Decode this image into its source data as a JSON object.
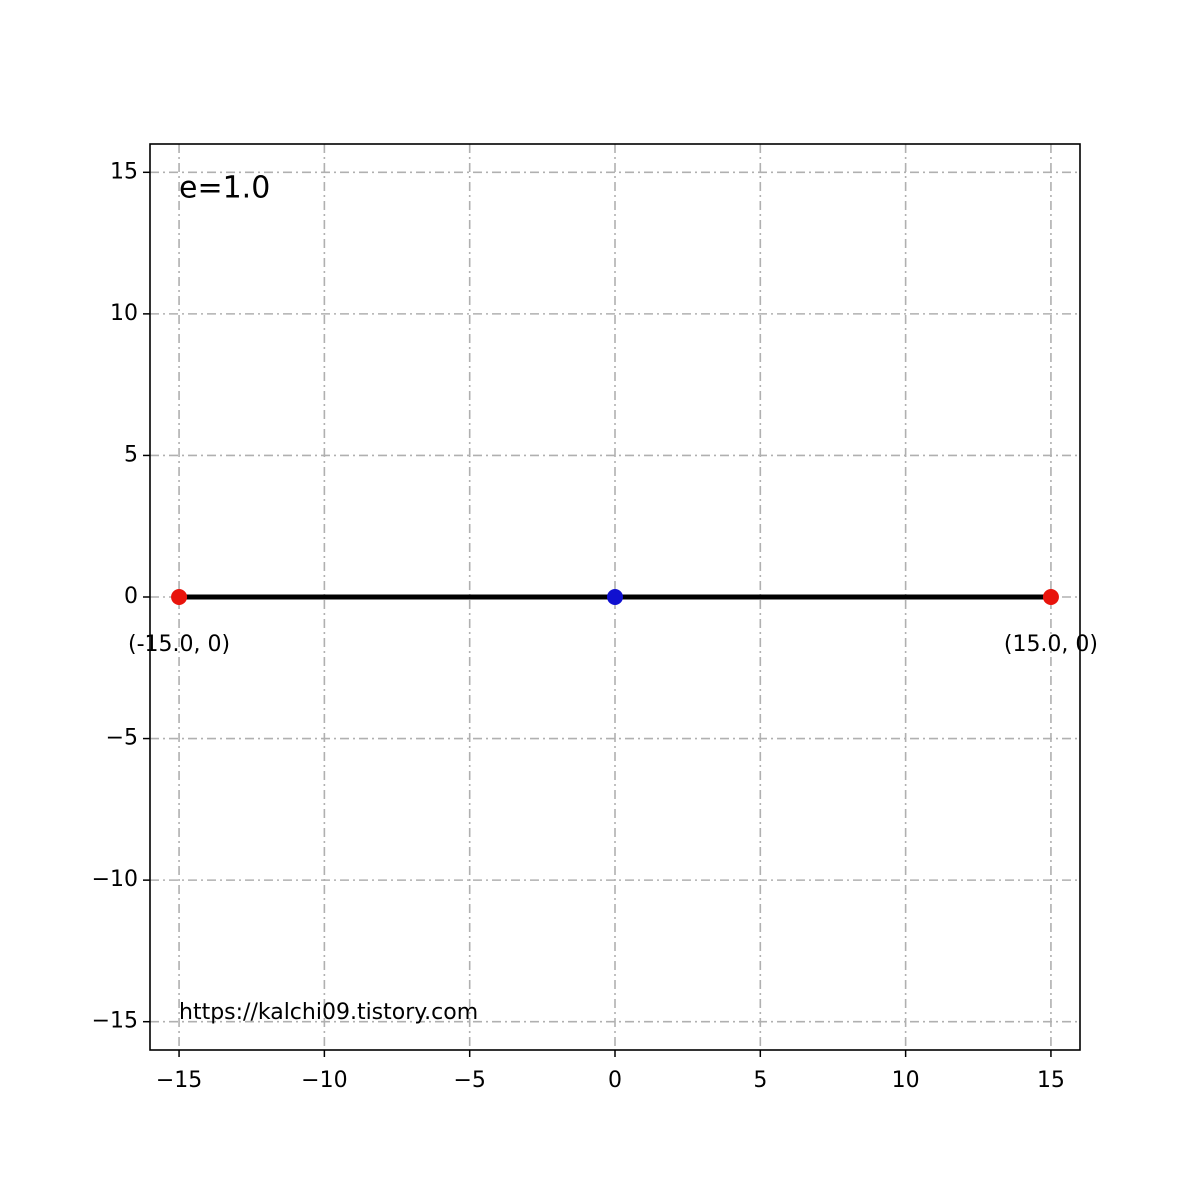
{
  "chart_data": {
    "type": "line",
    "annotations": [
      "e=1.0",
      "https://kalchi09.tistory.com"
    ],
    "series": [
      {
        "color": "#000000",
        "x": [
          -15,
          0,
          15
        ],
        "values": [
          0,
          0,
          0
        ]
      }
    ],
    "points": [
      {
        "x": -15,
        "y": 0,
        "color": "#e8140c",
        "label": "(-15.0, 0)"
      },
      {
        "x": 0,
        "y": 0,
        "color": "#1010d0"
      },
      {
        "x": 15,
        "y": 0,
        "color": "#e8140c",
        "label": "(15.0, 0)"
      }
    ],
    "xlim": [
      -16,
      16
    ],
    "ylim": [
      -16,
      16
    ],
    "xticks": [
      {
        "value": -15,
        "label": "−15"
      },
      {
        "value": -10,
        "label": "−10"
      },
      {
        "value": -5,
        "label": "−5"
      },
      0,
      5,
      10,
      15
    ],
    "yticks": [
      {
        "value": -15,
        "label": "−15"
      },
      {
        "value": -10,
        "label": "−10"
      },
      {
        "value": -5,
        "label": "−5"
      },
      0,
      5,
      10,
      15
    ],
    "grid": true
  }
}
